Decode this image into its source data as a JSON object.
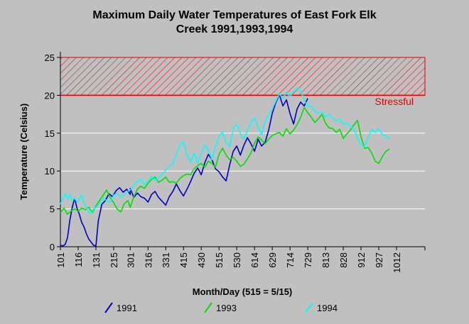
{
  "chart_data": {
    "type": "line",
    "title_line1": "Maximum Daily Water Temperatures of East Fork Elk",
    "title_line2": "Creek 1991,1993,1994",
    "xlabel": "Month/Day (515 = 5/15)",
    "ylabel": "Temperature (Celsius)",
    "ylim": [
      0,
      25
    ],
    "yticks": [
      0,
      5,
      10,
      15,
      20,
      25
    ],
    "xlim": [
      101,
      1027
    ],
    "xticks": [
      "101",
      "116",
      "131",
      "215",
      "301",
      "316",
      "331",
      "415",
      "430",
      "515",
      "530",
      "614",
      "629",
      "714",
      "729",
      "813",
      "828",
      "912",
      "927",
      "1012"
    ],
    "grid": "horizontal",
    "stress_zone": {
      "label": "Stressful",
      "from": 20,
      "to": 25,
      "color": "#e00000"
    },
    "series": [
      {
        "name": "1991",
        "color": "#0000c8",
        "points": [
          [
            101,
            0.2
          ],
          [
            103,
            0.1
          ],
          [
            105,
            0.3
          ],
          [
            107,
            1.2
          ],
          [
            109,
            3.5
          ],
          [
            111,
            5.2
          ],
          [
            113,
            6.4
          ],
          [
            115,
            5.1
          ],
          [
            117,
            4.3
          ],
          [
            119,
            3.2
          ],
          [
            121,
            2.6
          ],
          [
            123,
            1.7
          ],
          [
            125,
            1.0
          ],
          [
            127,
            0.6
          ],
          [
            129,
            0.2
          ],
          [
            131,
            0.1
          ],
          [
            202,
            3.4
          ],
          [
            205,
            5.6
          ],
          [
            208,
            6.1
          ],
          [
            211,
            7.0
          ],
          [
            214,
            6.6
          ],
          [
            217,
            7.4
          ],
          [
            220,
            7.8
          ],
          [
            223,
            7.2
          ],
          [
            226,
            7.6
          ],
          [
            229,
            6.9
          ],
          [
            301,
            7.7
          ],
          [
            304,
            6.5
          ],
          [
            307,
            7.1
          ],
          [
            310,
            6.6
          ],
          [
            313,
            6.4
          ],
          [
            316,
            5.9
          ],
          [
            319,
            6.9
          ],
          [
            322,
            7.3
          ],
          [
            325,
            6.5
          ],
          [
            328,
            6.0
          ],
          [
            331,
            5.5
          ],
          [
            403,
            6.6
          ],
          [
            406,
            7.3
          ],
          [
            409,
            8.3
          ],
          [
            412,
            7.4
          ],
          [
            415,
            6.7
          ],
          [
            418,
            7.6
          ],
          [
            421,
            8.6
          ],
          [
            424,
            9.7
          ],
          [
            427,
            10.4
          ],
          [
            430,
            9.5
          ],
          [
            503,
            11.1
          ],
          [
            506,
            12.2
          ],
          [
            509,
            11.5
          ],
          [
            512,
            10.3
          ],
          [
            515,
            9.9
          ],
          [
            518,
            9.2
          ],
          [
            521,
            8.7
          ],
          [
            524,
            10.8
          ],
          [
            527,
            12.6
          ],
          [
            530,
            13.3
          ],
          [
            602,
            12.1
          ],
          [
            605,
            13.4
          ],
          [
            608,
            14.4
          ],
          [
            611,
            13.6
          ],
          [
            614,
            12.6
          ],
          [
            617,
            14.2
          ],
          [
            620,
            13.3
          ],
          [
            623,
            13.8
          ],
          [
            626,
            15.4
          ],
          [
            629,
            17.6
          ],
          [
            702,
            19.0
          ],
          [
            705,
            20.1
          ],
          [
            708,
            18.6
          ],
          [
            711,
            19.4
          ],
          [
            714,
            17.6
          ],
          [
            717,
            16.2
          ],
          [
            720,
            18.2
          ],
          [
            723,
            19.1
          ],
          [
            726,
            18.6
          ],
          [
            729,
            19.6
          ]
        ]
      },
      {
        "name": "1993",
        "color": "#00e000",
        "points": [
          [
            101,
            4.5
          ],
          [
            104,
            5.1
          ],
          [
            107,
            4.3
          ],
          [
            110,
            4.7
          ],
          [
            113,
            5.0
          ],
          [
            116,
            4.7
          ],
          [
            119,
            5.1
          ],
          [
            122,
            4.9
          ],
          [
            125,
            5.2
          ],
          [
            128,
            4.5
          ],
          [
            131,
            5.4
          ],
          [
            203,
            6.1
          ],
          [
            206,
            6.8
          ],
          [
            209,
            7.5
          ],
          [
            212,
            6.5
          ],
          [
            215,
            5.8
          ],
          [
            218,
            5.0
          ],
          [
            221,
            4.6
          ],
          [
            224,
            5.7
          ],
          [
            227,
            6.1
          ],
          [
            301,
            5.2
          ],
          [
            304,
            6.6
          ],
          [
            307,
            7.6
          ],
          [
            310,
            8.0
          ],
          [
            313,
            7.7
          ],
          [
            316,
            8.4
          ],
          [
            319,
            8.9
          ],
          [
            322,
            9.2
          ],
          [
            325,
            8.5
          ],
          [
            328,
            8.8
          ],
          [
            331,
            9.2
          ],
          [
            403,
            8.5
          ],
          [
            406,
            8.6
          ],
          [
            409,
            8.4
          ],
          [
            412,
            9.0
          ],
          [
            415,
            9.4
          ],
          [
            418,
            9.6
          ],
          [
            421,
            9.5
          ],
          [
            424,
            10.3
          ],
          [
            427,
            10.7
          ],
          [
            430,
            11.0
          ],
          [
            503,
            10.5
          ],
          [
            506,
            11.3
          ],
          [
            509,
            11.0
          ],
          [
            512,
            10.5
          ],
          [
            515,
            12.2
          ],
          [
            518,
            13.0
          ],
          [
            521,
            12.1
          ],
          [
            524,
            11.5
          ],
          [
            527,
            11.8
          ],
          [
            530,
            11.3
          ],
          [
            602,
            10.6
          ],
          [
            605,
            10.9
          ],
          [
            608,
            11.6
          ],
          [
            611,
            12.4
          ],
          [
            614,
            13.7
          ],
          [
            617,
            14.5
          ],
          [
            620,
            14.1
          ],
          [
            623,
            13.6
          ],
          [
            626,
            14.2
          ],
          [
            629,
            14.7
          ],
          [
            702,
            14.9
          ],
          [
            705,
            15.1
          ],
          [
            708,
            14.6
          ],
          [
            711,
            15.6
          ],
          [
            714,
            14.9
          ],
          [
            717,
            15.4
          ],
          [
            720,
            16.1
          ],
          [
            723,
            17.1
          ],
          [
            726,
            18.4
          ],
          [
            729,
            17.7
          ],
          [
            801,
            17.1
          ],
          [
            804,
            16.4
          ],
          [
            807,
            16.9
          ],
          [
            810,
            17.5
          ],
          [
            813,
            16.3
          ],
          [
            816,
            15.7
          ],
          [
            819,
            15.6
          ],
          [
            822,
            15.1
          ],
          [
            825,
            15.5
          ],
          [
            828,
            14.3
          ],
          [
            831,
            14.9
          ],
          [
            903,
            15.4
          ],
          [
            906,
            16.1
          ],
          [
            909,
            16.7
          ],
          [
            912,
            14.5
          ],
          [
            915,
            13.0
          ],
          [
            918,
            13.1
          ],
          [
            921,
            12.4
          ],
          [
            924,
            11.3
          ],
          [
            927,
            11.0
          ],
          [
            930,
            11.9
          ],
          [
            1003,
            12.6
          ],
          [
            1006,
            12.9
          ]
        ]
      },
      {
        "name": "1994",
        "color": "#00ffff",
        "points": [
          [
            101,
            5.6
          ],
          [
            103,
            6.4
          ],
          [
            105,
            7.0
          ],
          [
            107,
            6.3
          ],
          [
            109,
            6.9
          ],
          [
            111,
            6.1
          ],
          [
            113,
            6.4
          ],
          [
            115,
            5.9
          ],
          [
            117,
            6.3
          ],
          [
            119,
            6.9
          ],
          [
            121,
            5.7
          ],
          [
            123,
            5.2
          ],
          [
            125,
            4.6
          ],
          [
            127,
            4.4
          ],
          [
            129,
            5.0
          ],
          [
            131,
            5.2
          ],
          [
            203,
            5.7
          ],
          [
            206,
            6.4
          ],
          [
            209,
            6.1
          ],
          [
            212,
            5.9
          ],
          [
            215,
            6.8
          ],
          [
            218,
            7.1
          ],
          [
            221,
            6.5
          ],
          [
            224,
            6.9
          ],
          [
            227,
            7.3
          ],
          [
            301,
            7.5
          ],
          [
            304,
            8.1
          ],
          [
            307,
            8.6
          ],
          [
            310,
            8.9
          ],
          [
            313,
            8.2
          ],
          [
            316,
            8.7
          ],
          [
            319,
            9.3
          ],
          [
            322,
            8.8
          ],
          [
            325,
            9.1
          ],
          [
            328,
            9.6
          ],
          [
            331,
            10.1
          ],
          [
            403,
            10.6
          ],
          [
            406,
            10.9
          ],
          [
            409,
            12.2
          ],
          [
            412,
            13.5
          ],
          [
            415,
            13.8
          ],
          [
            418,
            12.1
          ],
          [
            421,
            11.2
          ],
          [
            424,
            12.4
          ],
          [
            427,
            11.0
          ],
          [
            430,
            12.3
          ],
          [
            503,
            13.4
          ],
          [
            506,
            12.8
          ],
          [
            509,
            11.5
          ],
          [
            512,
            13.2
          ],
          [
            515,
            14.6
          ],
          [
            518,
            15.2
          ],
          [
            521,
            13.8
          ],
          [
            524,
            13.2
          ],
          [
            527,
            15.6
          ],
          [
            530,
            16.2
          ],
          [
            602,
            14.9
          ],
          [
            605,
            14.2
          ],
          [
            608,
            15.4
          ],
          [
            611,
            16.4
          ],
          [
            614,
            17.0
          ],
          [
            617,
            15.7
          ],
          [
            620,
            14.8
          ],
          [
            623,
            16.6
          ],
          [
            626,
            17.4
          ],
          [
            629,
            18.2
          ],
          [
            702,
            19.2
          ],
          [
            705,
            20.2
          ],
          [
            708,
            19.6
          ],
          [
            711,
            20.4
          ],
          [
            714,
            19.8
          ],
          [
            717,
            20.5
          ],
          [
            720,
            21.0
          ],
          [
            723,
            20.6
          ],
          [
            726,
            19.4
          ],
          [
            729,
            18.5
          ],
          [
            801,
            18.6
          ],
          [
            804,
            17.9
          ],
          [
            807,
            17.6
          ],
          [
            810,
            17.8
          ],
          [
            813,
            17.1
          ],
          [
            816,
            17.5
          ],
          [
            819,
            17.0
          ],
          [
            822,
            16.6
          ],
          [
            825,
            16.9
          ],
          [
            828,
            16.2
          ],
          [
            831,
            16.3
          ],
          [
            903,
            15.9
          ],
          [
            906,
            15.5
          ],
          [
            909,
            14.4
          ],
          [
            912,
            13.4
          ],
          [
            915,
            13.2
          ],
          [
            918,
            14.4
          ],
          [
            921,
            15.5
          ],
          [
            924,
            15.1
          ],
          [
            927,
            15.6
          ],
          [
            930,
            14.8
          ],
          [
            1003,
            14.6
          ],
          [
            1006,
            14.2
          ]
        ]
      }
    ]
  }
}
